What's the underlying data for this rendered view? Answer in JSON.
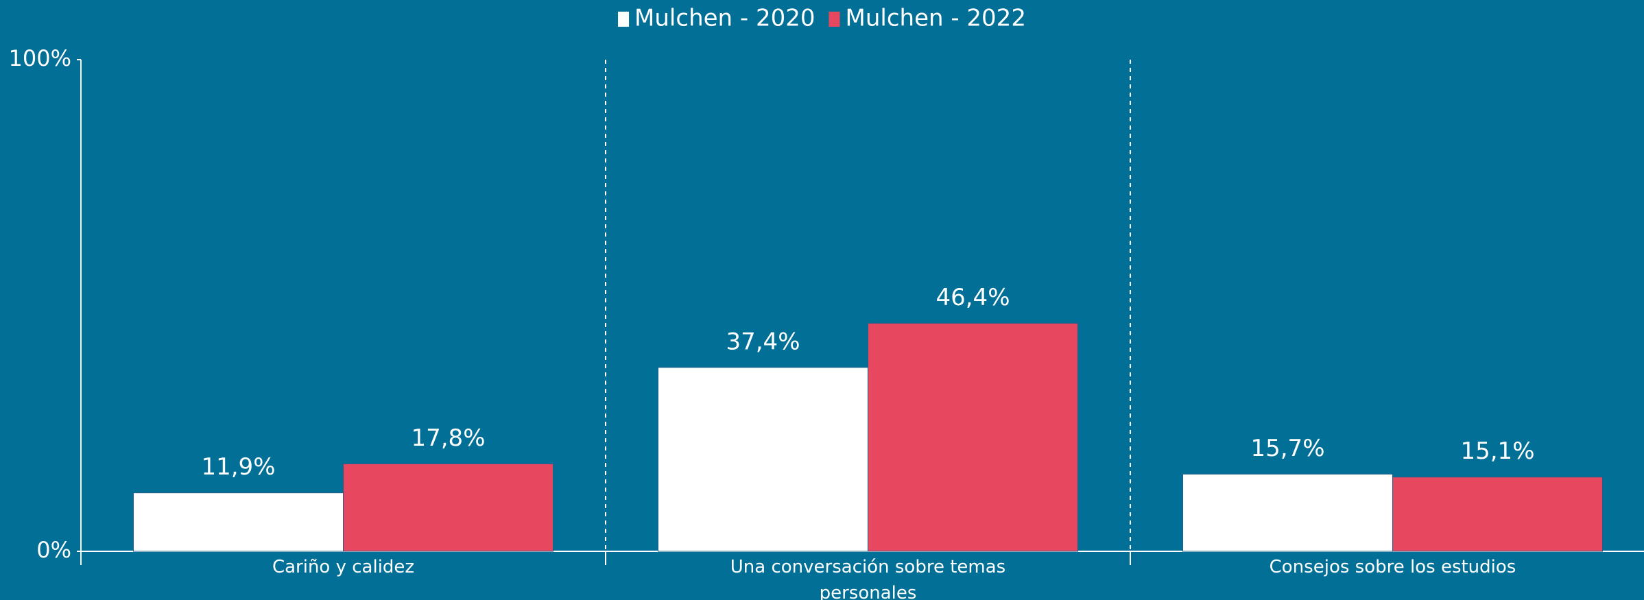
{
  "chart_data": {
    "type": "bar",
    "categories": [
      "Cariño y calidez",
      "Una conversación sobre temas personales",
      "Consejos sobre los estudios"
    ],
    "series": [
      {
        "name": "Mulchen - 2020",
        "color": "#ffffff",
        "values": [
          11.9,
          37.4,
          15.7
        ],
        "value_labels": [
          "11,9%",
          "37,4%",
          "15,7%"
        ]
      },
      {
        "name": "Mulchen - 2022",
        "color": "#e8485f",
        "values": [
          17.8,
          46.4,
          15.1
        ],
        "value_labels": [
          "17,8%",
          "46,4%",
          "15,1%"
        ]
      }
    ],
    "ylim": [
      0,
      100
    ],
    "yticks": [
      {
        "value": 0,
        "label": "0%"
      },
      {
        "value": 100,
        "label": "100%"
      }
    ],
    "legend": "top"
  }
}
